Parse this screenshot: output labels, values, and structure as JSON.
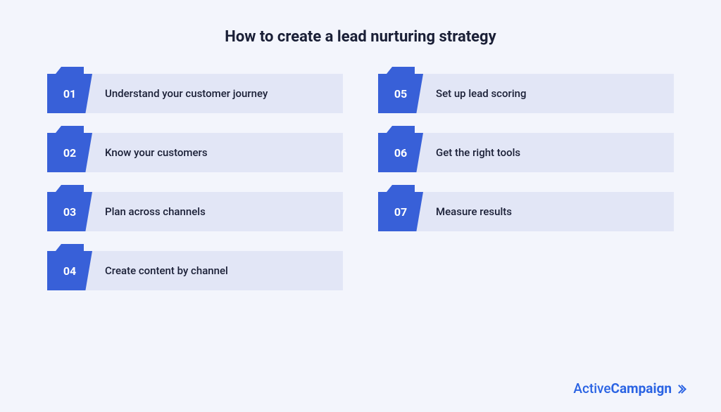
{
  "infographic": {
    "title": "How to create a lead nurturing strategy",
    "title_fontsize": 22,
    "title_color": "#1a1f36",
    "background_color": "#f3f5fc",
    "number_tab_color": "#3860d8",
    "number_box_color": "#3860d8",
    "number_text_color": "#ffffff",
    "number_fontsize": 16,
    "label_box_color": "#e2e6f6",
    "label_text_color": "#1a1f36",
    "label_fontsize": 15,
    "columns": [
      [
        {
          "number": "01",
          "label": "Understand your customer journey"
        },
        {
          "number": "02",
          "label": "Know your customers"
        },
        {
          "number": "03",
          "label": "Plan across channels"
        },
        {
          "number": "04",
          "label": "Create content by channel"
        }
      ],
      [
        {
          "number": "05",
          "label": "Set up lead scoring"
        },
        {
          "number": "06",
          "label": "Get the right tools"
        },
        {
          "number": "07",
          "label": "Measure results"
        }
      ]
    ]
  },
  "logo": {
    "text_light": "Active",
    "text_bold": "Campaign",
    "color": "#2a63e3",
    "fontsize": 19
  }
}
